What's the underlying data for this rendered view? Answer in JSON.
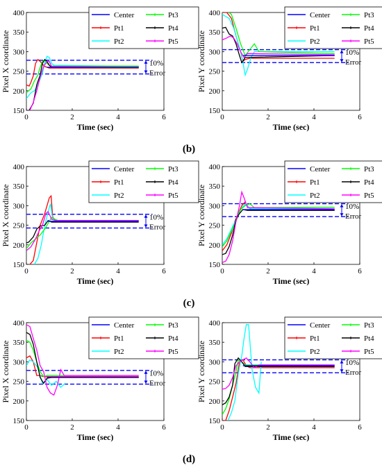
{
  "panel_labels": [
    "(b)",
    "(c)",
    "(d)"
  ],
  "legend_entries": [
    "Center",
    "Pt3",
    "Pt1",
    "Pt4",
    "Pt2",
    "Pt5"
  ],
  "error_annotation": {
    "line1": "10%",
    "line2": "Error"
  },
  "series_colors": {
    "Center": "#0000ff",
    "Pt1": "#ff0000",
    "Pt2": "#00ffff",
    "Pt3": "#00ff00",
    "Pt4": "#000000",
    "Pt5": "#ff00ff"
  },
  "chart_data": [
    {
      "id": "b-x",
      "type": "line",
      "xlabel": "Time (sec)",
      "ylabel": "Pixel X coordinate",
      "xlim": [
        0,
        6
      ],
      "ylim": [
        150,
        400
      ],
      "xticks": [
        0,
        2,
        4,
        6
      ],
      "yticks": [
        150,
        200,
        250,
        300,
        350,
        400
      ],
      "center": 260,
      "error_band": [
        243,
        278
      ],
      "series": [
        {
          "name": "Pt1",
          "x": [
            0,
            0.12,
            0.2,
            0.3,
            0.4,
            0.5,
            0.6,
            0.7,
            0.8,
            1.0,
            4.9
          ],
          "y": [
            215,
            212,
            222,
            238,
            270,
            280,
            275,
            268,
            262,
            258,
            258
          ]
        },
        {
          "name": "Pt2",
          "x": [
            0,
            0.2,
            0.35,
            0.5,
            0.6,
            0.7,
            0.8,
            0.9,
            1.0,
            1.1,
            1.2,
            4.9
          ],
          "y": [
            180,
            195,
            200,
            215,
            230,
            245,
            272,
            288,
            285,
            270,
            265,
            262
          ]
        },
        {
          "name": "Pt3",
          "x": [
            0,
            0.2,
            0.35,
            0.5,
            0.6,
            0.7,
            0.8,
            0.9,
            1.05,
            4.9
          ],
          "y": [
            195,
            205,
            225,
            240,
            260,
            275,
            278,
            270,
            263,
            263
          ]
        },
        {
          "name": "Pt4",
          "x": [
            0.12,
            0.3,
            0.45,
            0.6,
            0.7,
            0.8,
            0.9,
            1.0,
            1.1,
            4.9
          ],
          "y": [
            150,
            168,
            215,
            240,
            270,
            280,
            275,
            265,
            260,
            260
          ]
        },
        {
          "name": "Pt5",
          "x": [
            0.15,
            0.3,
            0.45,
            0.6,
            0.75,
            0.9,
            1.0,
            1.1,
            4.9
          ],
          "y": [
            150,
            170,
            200,
            235,
            262,
            275,
            275,
            262,
            260
          ]
        }
      ]
    },
    {
      "id": "b-y",
      "type": "line",
      "xlabel": "Time (sec)",
      "ylabel": "Pixel Y coordinate",
      "xlim": [
        0,
        6
      ],
      "ylim": [
        150,
        400
      ],
      "xticks": [
        0,
        2,
        4,
        6
      ],
      "yticks": [
        150,
        200,
        250,
        300,
        350,
        400
      ],
      "center": 290,
      "error_band": [
        272,
        305
      ],
      "series": [
        {
          "name": "Pt1",
          "x": [
            0,
            0.2,
            0.4,
            0.6,
            0.8,
            0.9,
            1.0,
            1.2,
            4.9
          ],
          "y": [
            400,
            400,
            385,
            340,
            300,
            275,
            280,
            283,
            283
          ]
        },
        {
          "name": "Pt2",
          "x": [
            0,
            0.3,
            0.5,
            0.7,
            0.85,
            1.0,
            1.1,
            1.25,
            1.4,
            4.9
          ],
          "y": [
            395,
            385,
            360,
            320,
            290,
            240,
            255,
            285,
            300,
            300
          ]
        },
        {
          "name": "Pt3",
          "x": [
            0,
            0.2,
            0.4,
            0.6,
            0.8,
            1.0,
            1.2,
            1.4,
            1.6,
            4.9
          ],
          "y": [
            400,
            405,
            395,
            360,
            320,
            290,
            305,
            320,
            300,
            295
          ]
        },
        {
          "name": "Pt4",
          "x": [
            0,
            0.15,
            0.3,
            0.45,
            0.6,
            0.75,
            0.85,
            1.0,
            4.9
          ],
          "y": [
            360,
            362,
            345,
            340,
            320,
            290,
            272,
            285,
            290
          ]
        },
        {
          "name": "Pt5",
          "x": [
            0,
            0.2,
            0.35,
            0.5,
            0.65,
            0.8,
            0.95,
            1.1,
            4.9
          ],
          "y": [
            330,
            335,
            340,
            335,
            320,
            300,
            285,
            295,
            292
          ]
        }
      ]
    },
    {
      "id": "c-x",
      "type": "line",
      "xlabel": "Time (sec)",
      "ylabel": "Pixel X coordinate",
      "xlim": [
        0,
        6
      ],
      "ylim": [
        150,
        400
      ],
      "xticks": [
        0,
        2,
        4,
        6
      ],
      "yticks": [
        150,
        200,
        250,
        300,
        350,
        400
      ],
      "center": 260,
      "error_band": [
        243,
        278
      ],
      "series": [
        {
          "name": "Pt1",
          "x": [
            0.15,
            0.3,
            0.5,
            0.6,
            0.7,
            0.8,
            0.9,
            1.0,
            1.08,
            1.15,
            1.3,
            4.9
          ],
          "y": [
            150,
            160,
            220,
            250,
            265,
            280,
            300,
            320,
            325,
            270,
            262,
            262
          ]
        },
        {
          "name": "Pt2",
          "x": [
            0.35,
            0.5,
            0.65,
            0.8,
            0.95,
            1.05,
            1.15,
            1.3,
            4.9
          ],
          "y": [
            150,
            165,
            200,
            250,
            285,
            305,
            265,
            260,
            262
          ]
        },
        {
          "name": "Pt3",
          "x": [
            0,
            0.2,
            0.4,
            0.6,
            0.8,
            0.95,
            1.1,
            1.25,
            1.5,
            4.9
          ],
          "y": [
            190,
            205,
            215,
            225,
            240,
            255,
            270,
            265,
            260,
            262
          ]
        },
        {
          "name": "Pt4",
          "x": [
            0,
            0.1,
            0.3,
            0.45,
            0.6,
            0.8,
            0.95,
            1.1,
            1.3,
            4.9
          ],
          "y": [
            205,
            207,
            220,
            240,
            248,
            250,
            262,
            258,
            258,
            258
          ]
        },
        {
          "name": "Pt5",
          "x": [
            0,
            0.2,
            0.4,
            0.55,
            0.7,
            0.85,
            0.95,
            1.1,
            1.3,
            4.9
          ],
          "y": [
            185,
            195,
            215,
            235,
            250,
            280,
            285,
            265,
            262,
            262
          ]
        }
      ]
    },
    {
      "id": "c-y",
      "type": "line",
      "xlabel": "Time (sec)",
      "ylabel": "Pixel Y coordinate",
      "xlim": [
        0,
        6
      ],
      "ylim": [
        150,
        400
      ],
      "xticks": [
        0,
        2,
        4,
        6
      ],
      "yticks": [
        150,
        200,
        250,
        300,
        350,
        400
      ],
      "center": 290,
      "error_band": [
        272,
        305
      ],
      "series": [
        {
          "name": "Pt1",
          "x": [
            0,
            0.2,
            0.4,
            0.55,
            0.7,
            0.85,
            1.0,
            1.1,
            1.3,
            4.9
          ],
          "y": [
            185,
            200,
            230,
            260,
            280,
            300,
            310,
            298,
            290,
            290
          ]
        },
        {
          "name": "Pt2",
          "x": [
            0,
            0.2,
            0.4,
            0.6,
            0.75,
            0.9,
            1.05,
            1.2,
            4.9
          ],
          "y": [
            200,
            215,
            240,
            265,
            285,
            298,
            305,
            292,
            292
          ]
        },
        {
          "name": "Pt3",
          "x": [
            0,
            0.2,
            0.4,
            0.6,
            0.8,
            1.0,
            1.2,
            1.4,
            4.9
          ],
          "y": [
            195,
            210,
            235,
            260,
            290,
            300,
            305,
            295,
            296
          ]
        },
        {
          "name": "Pt4",
          "x": [
            0,
            0.15,
            0.3,
            0.45,
            0.6,
            0.75,
            0.9,
            1.1,
            4.9
          ],
          "y": [
            175,
            178,
            195,
            225,
            265,
            280,
            290,
            288,
            288
          ]
        },
        {
          "name": "Pt5",
          "x": [
            0,
            0.15,
            0.3,
            0.45,
            0.6,
            0.75,
            0.85,
            0.95,
            1.1,
            4.9
          ],
          "y": [
            155,
            158,
            175,
            210,
            260,
            300,
            335,
            320,
            295,
            292
          ]
        }
      ]
    },
    {
      "id": "d-x",
      "type": "line",
      "xlabel": "Time (sec)",
      "ylabel": "Pixel X coordinate",
      "xlim": [
        0,
        6
      ],
      "ylim": [
        150,
        400
      ],
      "xticks": [
        0,
        2,
        4,
        6
      ],
      "yticks": [
        150,
        200,
        250,
        300,
        350,
        400
      ],
      "center": 260,
      "error_band": [
        243,
        278
      ],
      "series": [
        {
          "name": "Pt1",
          "x": [
            0,
            0.15,
            0.3,
            0.45,
            0.6,
            0.75,
            0.9,
            1.1,
            4.9
          ],
          "y": [
            310,
            315,
            300,
            265,
            265,
            262,
            262,
            262,
            262
          ]
        },
        {
          "name": "Pt2",
          "x": [
            0,
            0.15,
            0.3,
            0.5,
            0.7,
            0.9,
            1.1,
            1.3,
            1.5,
            1.7
          ],
          "y": [
            290,
            305,
            300,
            285,
            245,
            255,
            240,
            250,
            235,
            245
          ]
        },
        {
          "name": "Pt3",
          "x": [
            0,
            0.15,
            0.3,
            0.45,
            0.6,
            0.75,
            0.9,
            1.1,
            4.9
          ],
          "y": [
            355,
            350,
            330,
            300,
            275,
            262,
            265,
            265,
            265
          ]
        },
        {
          "name": "Pt4",
          "x": [
            0,
            0.15,
            0.3,
            0.45,
            0.6,
            0.75,
            0.9,
            1.1,
            4.9
          ],
          "y": [
            375,
            370,
            345,
            300,
            260,
            245,
            258,
            260,
            260
          ]
        },
        {
          "name": "Pt5",
          "x": [
            0,
            0.15,
            0.3,
            0.45,
            0.6,
            0.75,
            0.9,
            1.05,
            1.2,
            1.35,
            1.5,
            1.65,
            4.9
          ],
          "y": [
            395,
            390,
            360,
            330,
            290,
            275,
            235,
            220,
            215,
            240,
            280,
            265,
            265
          ]
        }
      ]
    },
    {
      "id": "d-y",
      "type": "line",
      "xlabel": "Time (sec)",
      "ylabel": "Pixel Y coordinate",
      "xlim": [
        0,
        6
      ],
      "ylim": [
        150,
        400
      ],
      "xticks": [
        0,
        2,
        4,
        6
      ],
      "yticks": [
        150,
        200,
        250,
        300,
        350,
        400
      ],
      "center": 290,
      "error_band": [
        272,
        305
      ],
      "series": [
        {
          "name": "Pt1",
          "x": [
            0,
            0.15,
            0.3,
            0.45,
            0.6,
            0.75,
            0.9,
            1.05,
            1.2,
            4.9
          ],
          "y": [
            150,
            150,
            175,
            210,
            245,
            300,
            305,
            290,
            285,
            285
          ]
        },
        {
          "name": "Pt2",
          "x": [
            0.25,
            0.4,
            0.55,
            0.7,
            0.85,
            0.95,
            1.05,
            1.15,
            1.3,
            1.45,
            1.6,
            1.7
          ],
          "y": [
            150,
            170,
            200,
            270,
            315,
            360,
            395,
            395,
            280,
            235,
            220,
            300
          ]
        },
        {
          "name": "Pt3",
          "x": [
            0,
            0.15,
            0.3,
            0.45,
            0.6,
            0.7,
            0.85,
            1.0,
            1.2,
            4.9
          ],
          "y": [
            165,
            180,
            205,
            240,
            275,
            305,
            300,
            292,
            292,
            292
          ]
        },
        {
          "name": "Pt4",
          "x": [
            0,
            0.15,
            0.3,
            0.45,
            0.55,
            0.7,
            0.85,
            1.0,
            4.9
          ],
          "y": [
            190,
            195,
            210,
            240,
            295,
            310,
            300,
            288,
            288
          ]
        },
        {
          "name": "Pt5",
          "x": [
            0,
            0.15,
            0.3,
            0.45,
            0.6,
            0.75,
            0.9,
            1.05,
            1.2,
            1.4,
            1.6,
            4.9
          ],
          "y": [
            230,
            232,
            240,
            260,
            290,
            300,
            305,
            310,
            300,
            285,
            292,
            292
          ]
        }
      ]
    }
  ]
}
